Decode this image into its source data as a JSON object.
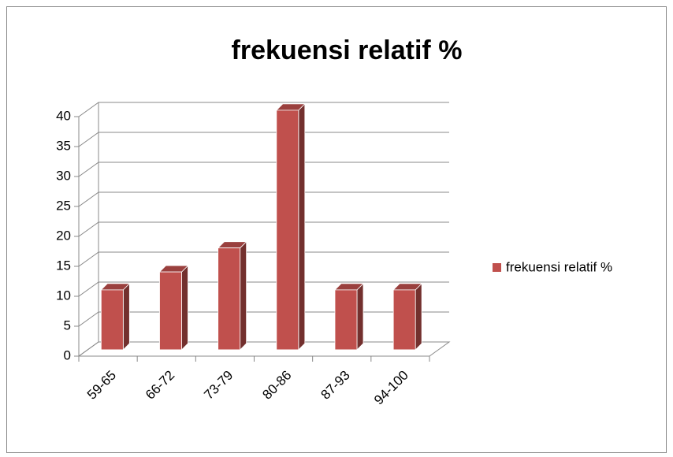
{
  "chart_data": {
    "type": "bar3d",
    "title": "frekuensi relatif %",
    "categories": [
      "59-65",
      "66-72",
      "73-79",
      "80-86",
      "87-93",
      "94-100"
    ],
    "series": [
      {
        "name": "frekuensi relatif %",
        "color": "#c0504d",
        "values": [
          10,
          13,
          17,
          40,
          10,
          10
        ]
      }
    ],
    "ylim": [
      0,
      40
    ],
    "yticks": [
      0,
      5,
      10,
      15,
      20,
      25,
      30,
      35,
      40
    ],
    "grid": true,
    "legend": "right"
  }
}
